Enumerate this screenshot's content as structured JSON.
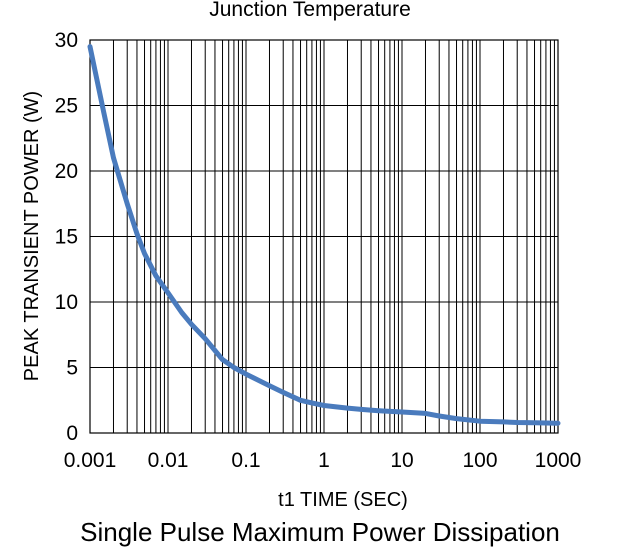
{
  "chart_data": {
    "type": "line",
    "title_partial": "Junction Temperature",
    "caption": "Single Pulse Maximum Power Dissipation",
    "xlabel": "t1 TIME (SEC)",
    "ylabel": "PEAK TRANSIENT POWER (W)",
    "xscale": "log",
    "xlim": [
      0.001,
      1000
    ],
    "ylim": [
      0,
      30
    ],
    "x_ticks": [
      "0.001",
      "0.01",
      "0.1",
      "1",
      "10",
      "100",
      "1000"
    ],
    "y_ticks": [
      "0",
      "5",
      "10",
      "15",
      "20",
      "25",
      "30"
    ],
    "grid": true,
    "series": [
      {
        "color": "#4a7bbd",
        "x": [
          0.001,
          0.0015,
          0.002,
          0.003,
          0.004,
          0.005,
          0.007,
          0.01,
          0.015,
          0.02,
          0.03,
          0.05,
          0.07,
          0.1,
          0.2,
          0.3,
          0.5,
          0.7,
          1,
          2,
          3,
          5,
          10,
          20,
          30,
          50,
          100,
          200,
          300,
          500,
          1000
        ],
        "y": [
          29.5,
          24.5,
          21.0,
          17.5,
          15.2,
          13.7,
          12.0,
          10.7,
          9.2,
          8.3,
          7.2,
          5.6,
          5.0,
          4.5,
          3.6,
          3.1,
          2.5,
          2.3,
          2.1,
          1.9,
          1.8,
          1.7,
          1.6,
          1.5,
          1.3,
          1.1,
          0.9,
          0.85,
          0.8,
          0.78,
          0.75
        ]
      }
    ]
  }
}
